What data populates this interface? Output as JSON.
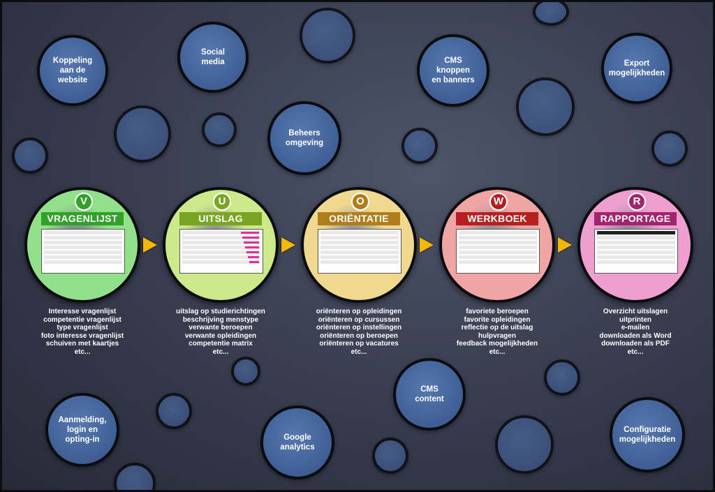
{
  "circles": {
    "koppeling": "Koppeling aan de website",
    "social": "Social media",
    "cms_knoppen": "CMS knoppen en banners",
    "export": "Export mogelijkheden",
    "beheers": "Beheers omgeving",
    "aanmelding": "Aanmelding, login en opting-in",
    "google": "Google analytics",
    "cms_content": "CMS content",
    "configuratie": "Configuratie mogelijkheden"
  },
  "stages": [
    {
      "letter": "V",
      "title": "VRAGENLIJST",
      "color": "#33a02c",
      "fill": "#93e08a",
      "caption": [
        "Interesse vragenlijst",
        "competentie vragenlijst",
        "type vragenlijst",
        "foto interesse vragenlijst",
        "schuiven met kaartjes",
        "etc..."
      ]
    },
    {
      "letter": "U",
      "title": "UITSLAG",
      "color": "#7aa524",
      "fill": "#cdea8a",
      "caption": [
        "uitslag op studierichtingen",
        "beschrijving menstype",
        "verwante beroepen",
        "verwante opleidingen",
        "competentie matrix",
        "etc..."
      ]
    },
    {
      "letter": "O",
      "title": "ORIËNTATIE",
      "color": "#b07d1c",
      "fill": "#f0d88e",
      "caption": [
        "oriënteren op opleidingen",
        "oriënteren op cursussen",
        "oriënteren op instellingen",
        "oriënteren op beroepen",
        "oriënteren op vacatures",
        "etc..."
      ]
    },
    {
      "letter": "W",
      "title": "WERKBOEK",
      "color": "#b51f1f",
      "fill": "#f0a4a4",
      "caption": [
        "favoriete beroepen",
        "favorite opleidingen",
        "reflectie op de uitslag",
        "hulpvragen",
        "feedback mogelijkheden",
        "etc..."
      ]
    },
    {
      "letter": "R",
      "title": "RAPPORTAGE",
      "color": "#a3246e",
      "fill": "#ee9fd0",
      "caption": [
        "Overzicht uitslagen",
        "uitprinten",
        "e-mailen",
        "downloaden als Word",
        "downloaden als PDF",
        "etc..."
      ]
    }
  ]
}
